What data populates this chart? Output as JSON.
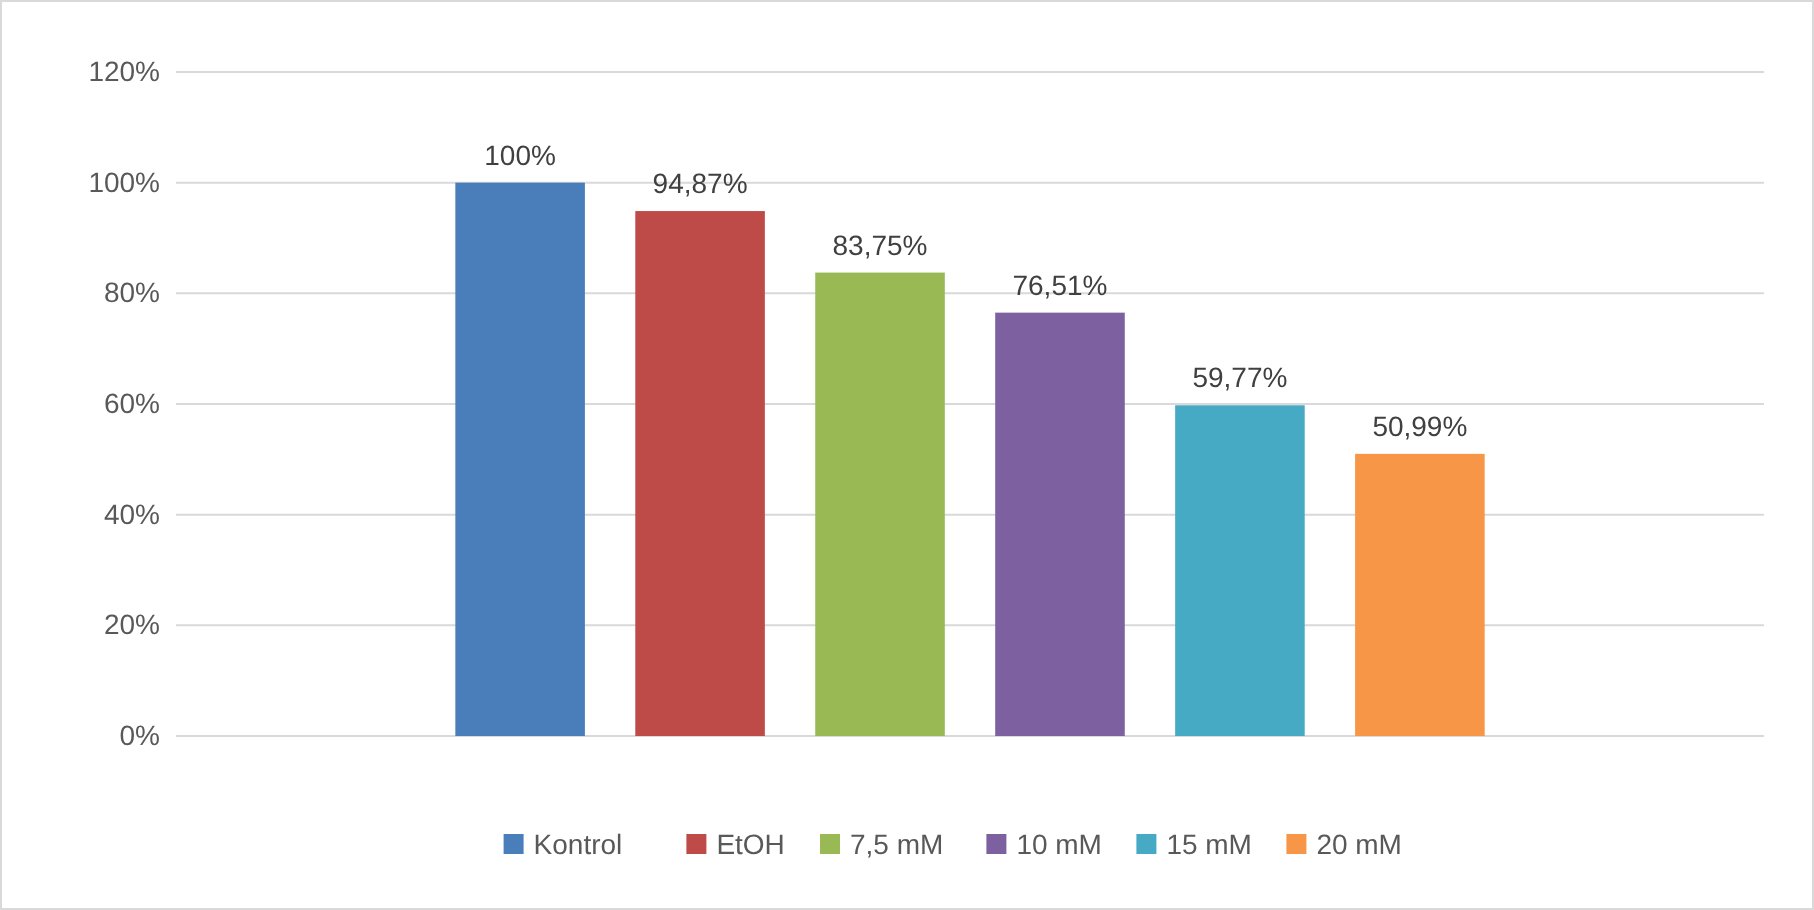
{
  "chart_data": {
    "type": "bar",
    "categories": [
      null
    ],
    "series": [
      {
        "name": "Kontrol",
        "color": "#4a7ebb",
        "values": [
          100
        ],
        "value_labels": [
          "100%"
        ]
      },
      {
        "name": "EtOH",
        "color": "#be4b48",
        "values": [
          94.87
        ],
        "value_labels": [
          "94,87%"
        ]
      },
      {
        "name": "7,5 mM",
        "color": "#98b954",
        "values": [
          83.75
        ],
        "value_labels": [
          "83,75%"
        ]
      },
      {
        "name": "10 mM",
        "color": "#7d60a0",
        "values": [
          76.51
        ],
        "value_labels": [
          "76,51%"
        ]
      },
      {
        "name": "15 mM",
        "color": "#46aac5",
        "values": [
          59.77
        ],
        "value_labels": [
          "59,77%"
        ]
      },
      {
        "name": "20 mM",
        "color": "#f79646",
        "values": [
          50.99
        ],
        "value_labels": [
          "50,99%"
        ]
      }
    ],
    "ylim": [
      0,
      120
    ],
    "yticks": [
      {
        "value": 0,
        "label": "0%"
      },
      {
        "value": 20,
        "label": "20%"
      },
      {
        "value": 40,
        "label": "40%"
      },
      {
        "value": 60,
        "label": "60%"
      },
      {
        "value": 80,
        "label": "80%"
      },
      {
        "value": 100,
        "label": "100%"
      },
      {
        "value": 120,
        "label": "120%"
      }
    ],
    "grid": "y",
    "legend": "bottom",
    "tick_labels": "y"
  }
}
